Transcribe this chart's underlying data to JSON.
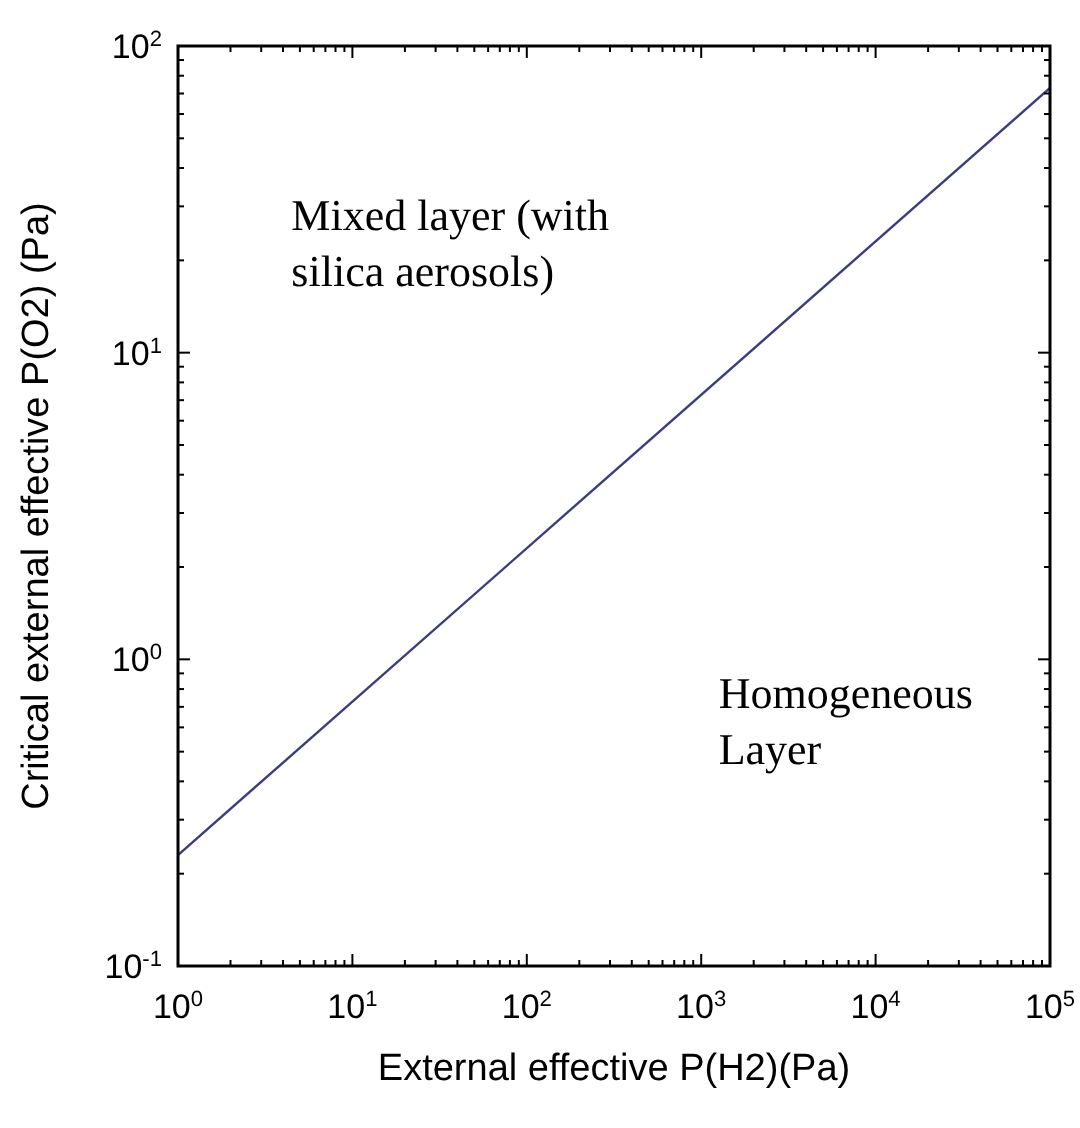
{
  "chart_data": {
    "type": "line",
    "xlabel": "External effective P(H2)(Pa)",
    "ylabel": "Critical external effective P(O2) (Pa)",
    "log": "xy",
    "grid": false,
    "marker": "none",
    "line_style": "solid",
    "x": [
      1,
      100000
    ],
    "series": [
      {
        "color": "#3c3c80",
        "values": [
          0.23,
          73
        ]
      }
    ],
    "xlim": [
      1,
      100000
    ],
    "ylim": [
      0.1,
      100
    ],
    "xticks": [
      {
        "value": 1,
        "label": "10$^{0}$"
      },
      {
        "value": 10,
        "label": "10$^{1}$"
      },
      {
        "value": 100,
        "label": "10$^{2}$"
      },
      {
        "value": 1000,
        "label": "10$^{3}$"
      },
      {
        "value": 10000,
        "label": "10$^{4}$"
      },
      {
        "value": 100000,
        "label": "10$^{5}$"
      }
    ],
    "yticks": [
      {
        "value": 0.1,
        "label": "10$^{-1}$"
      },
      {
        "value": 1,
        "label": "10$^{0}$"
      },
      {
        "value": 10,
        "label": "10$^{1}$"
      },
      {
        "value": 100,
        "label": "10$^{2}$"
      }
    ],
    "annotations": [
      "Mixed layer (with silica aerosols)",
      "Homogeneous Layer"
    ]
  }
}
